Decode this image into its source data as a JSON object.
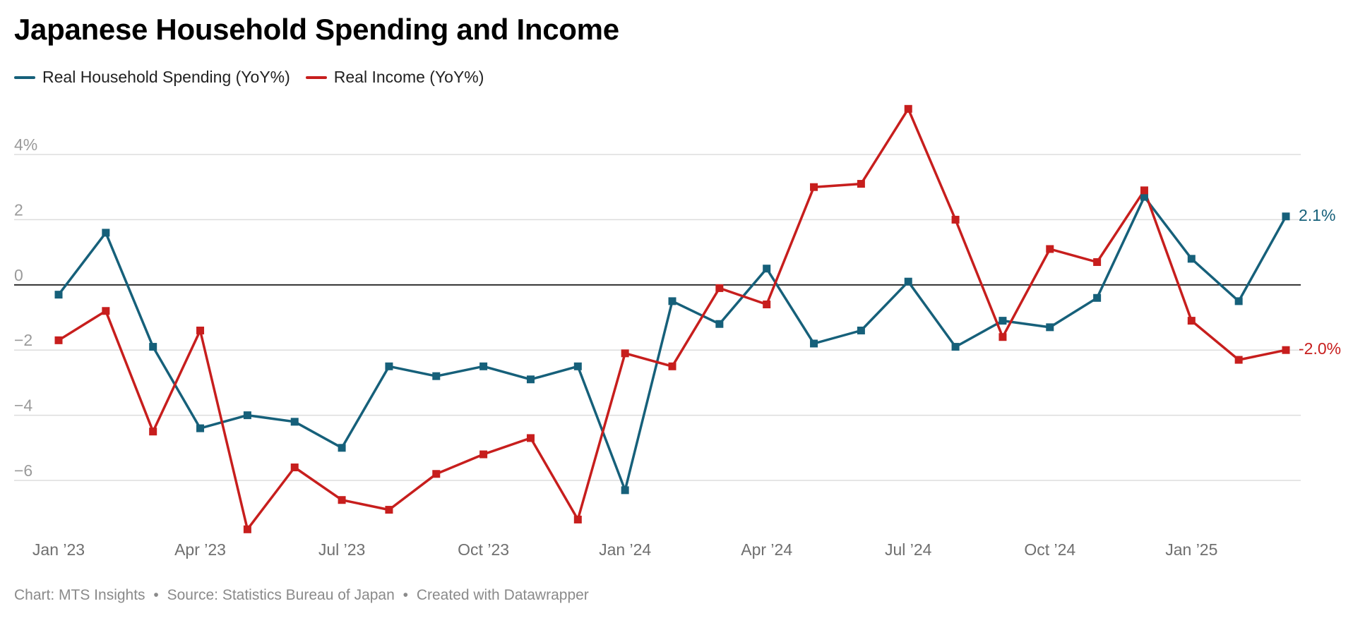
{
  "header": {
    "title": "Japanese Household Spending and Income"
  },
  "footer": {
    "chart_by": "Chart: MTS Insights",
    "source": "Source: Statistics Bureau of Japan",
    "created_with": "Created with Datawrapper",
    "separator": "•"
  },
  "chart_data": {
    "type": "line",
    "title": "Japanese Household Spending and Income",
    "xlabel": "",
    "ylabel": "",
    "x": [
      "2023-01",
      "2023-02",
      "2023-03",
      "2023-04",
      "2023-05",
      "2023-06",
      "2023-07",
      "2023-08",
      "2023-09",
      "2023-10",
      "2023-11",
      "2023-12",
      "2024-01",
      "2024-02",
      "2024-03",
      "2024-04",
      "2024-05",
      "2024-06",
      "2024-07",
      "2024-08",
      "2024-09",
      "2024-10",
      "2024-11",
      "2024-12",
      "2025-01",
      "2025-02",
      "2025-03"
    ],
    "x_ticks": [
      {
        "x": "2023-01",
        "label": "Jan ’23"
      },
      {
        "x": "2023-04",
        "label": "Apr ’23"
      },
      {
        "x": "2023-07",
        "label": "Jul ’23"
      },
      {
        "x": "2023-10",
        "label": "Oct ’23"
      },
      {
        "x": "2024-01",
        "label": "Jan ’24"
      },
      {
        "x": "2024-04",
        "label": "Apr ’24"
      },
      {
        "x": "2024-07",
        "label": "Jul ’24"
      },
      {
        "x": "2024-10",
        "label": "Oct ’24"
      },
      {
        "x": "2025-01",
        "label": "Jan ’25"
      }
    ],
    "y_ticks": [
      {
        "value": 4,
        "label": "4%"
      },
      {
        "value": 2,
        "label": "2"
      },
      {
        "value": 0,
        "label": "0"
      },
      {
        "value": -2,
        "label": "−2"
      },
      {
        "value": -4,
        "label": "−4"
      },
      {
        "value": -6,
        "label": "−6"
      }
    ],
    "ylim": [
      -7.8,
      5.6
    ],
    "grid": true,
    "legend_position": "top-left",
    "series": [
      {
        "name": "Real Household Spending (YoY%)",
        "color": "#16607a",
        "values": [
          -0.3,
          1.6,
          -1.9,
          -4.4,
          -4.0,
          -4.2,
          -5.0,
          -2.5,
          -2.8,
          -2.5,
          -2.9,
          -2.5,
          -6.3,
          -0.5,
          -1.2,
          0.5,
          -1.8,
          -1.4,
          0.1,
          -1.9,
          -1.1,
          -1.3,
          -0.4,
          2.7,
          0.8,
          -0.5,
          2.1
        ],
        "end_label": "2.1%"
      },
      {
        "name": "Real Income (YoY%)",
        "color": "#c71e1d",
        "values": [
          -1.7,
          -0.8,
          -4.5,
          -1.4,
          -7.5,
          -5.6,
          -6.6,
          -6.9,
          -5.8,
          -5.2,
          -4.7,
          -7.2,
          -2.1,
          -2.5,
          -0.1,
          -0.6,
          3.0,
          3.1,
          5.4,
          2.0,
          -1.6,
          1.1,
          0.7,
          2.9,
          -1.1,
          -2.3,
          -2.0
        ],
        "end_label": "-2.0%"
      }
    ]
  }
}
